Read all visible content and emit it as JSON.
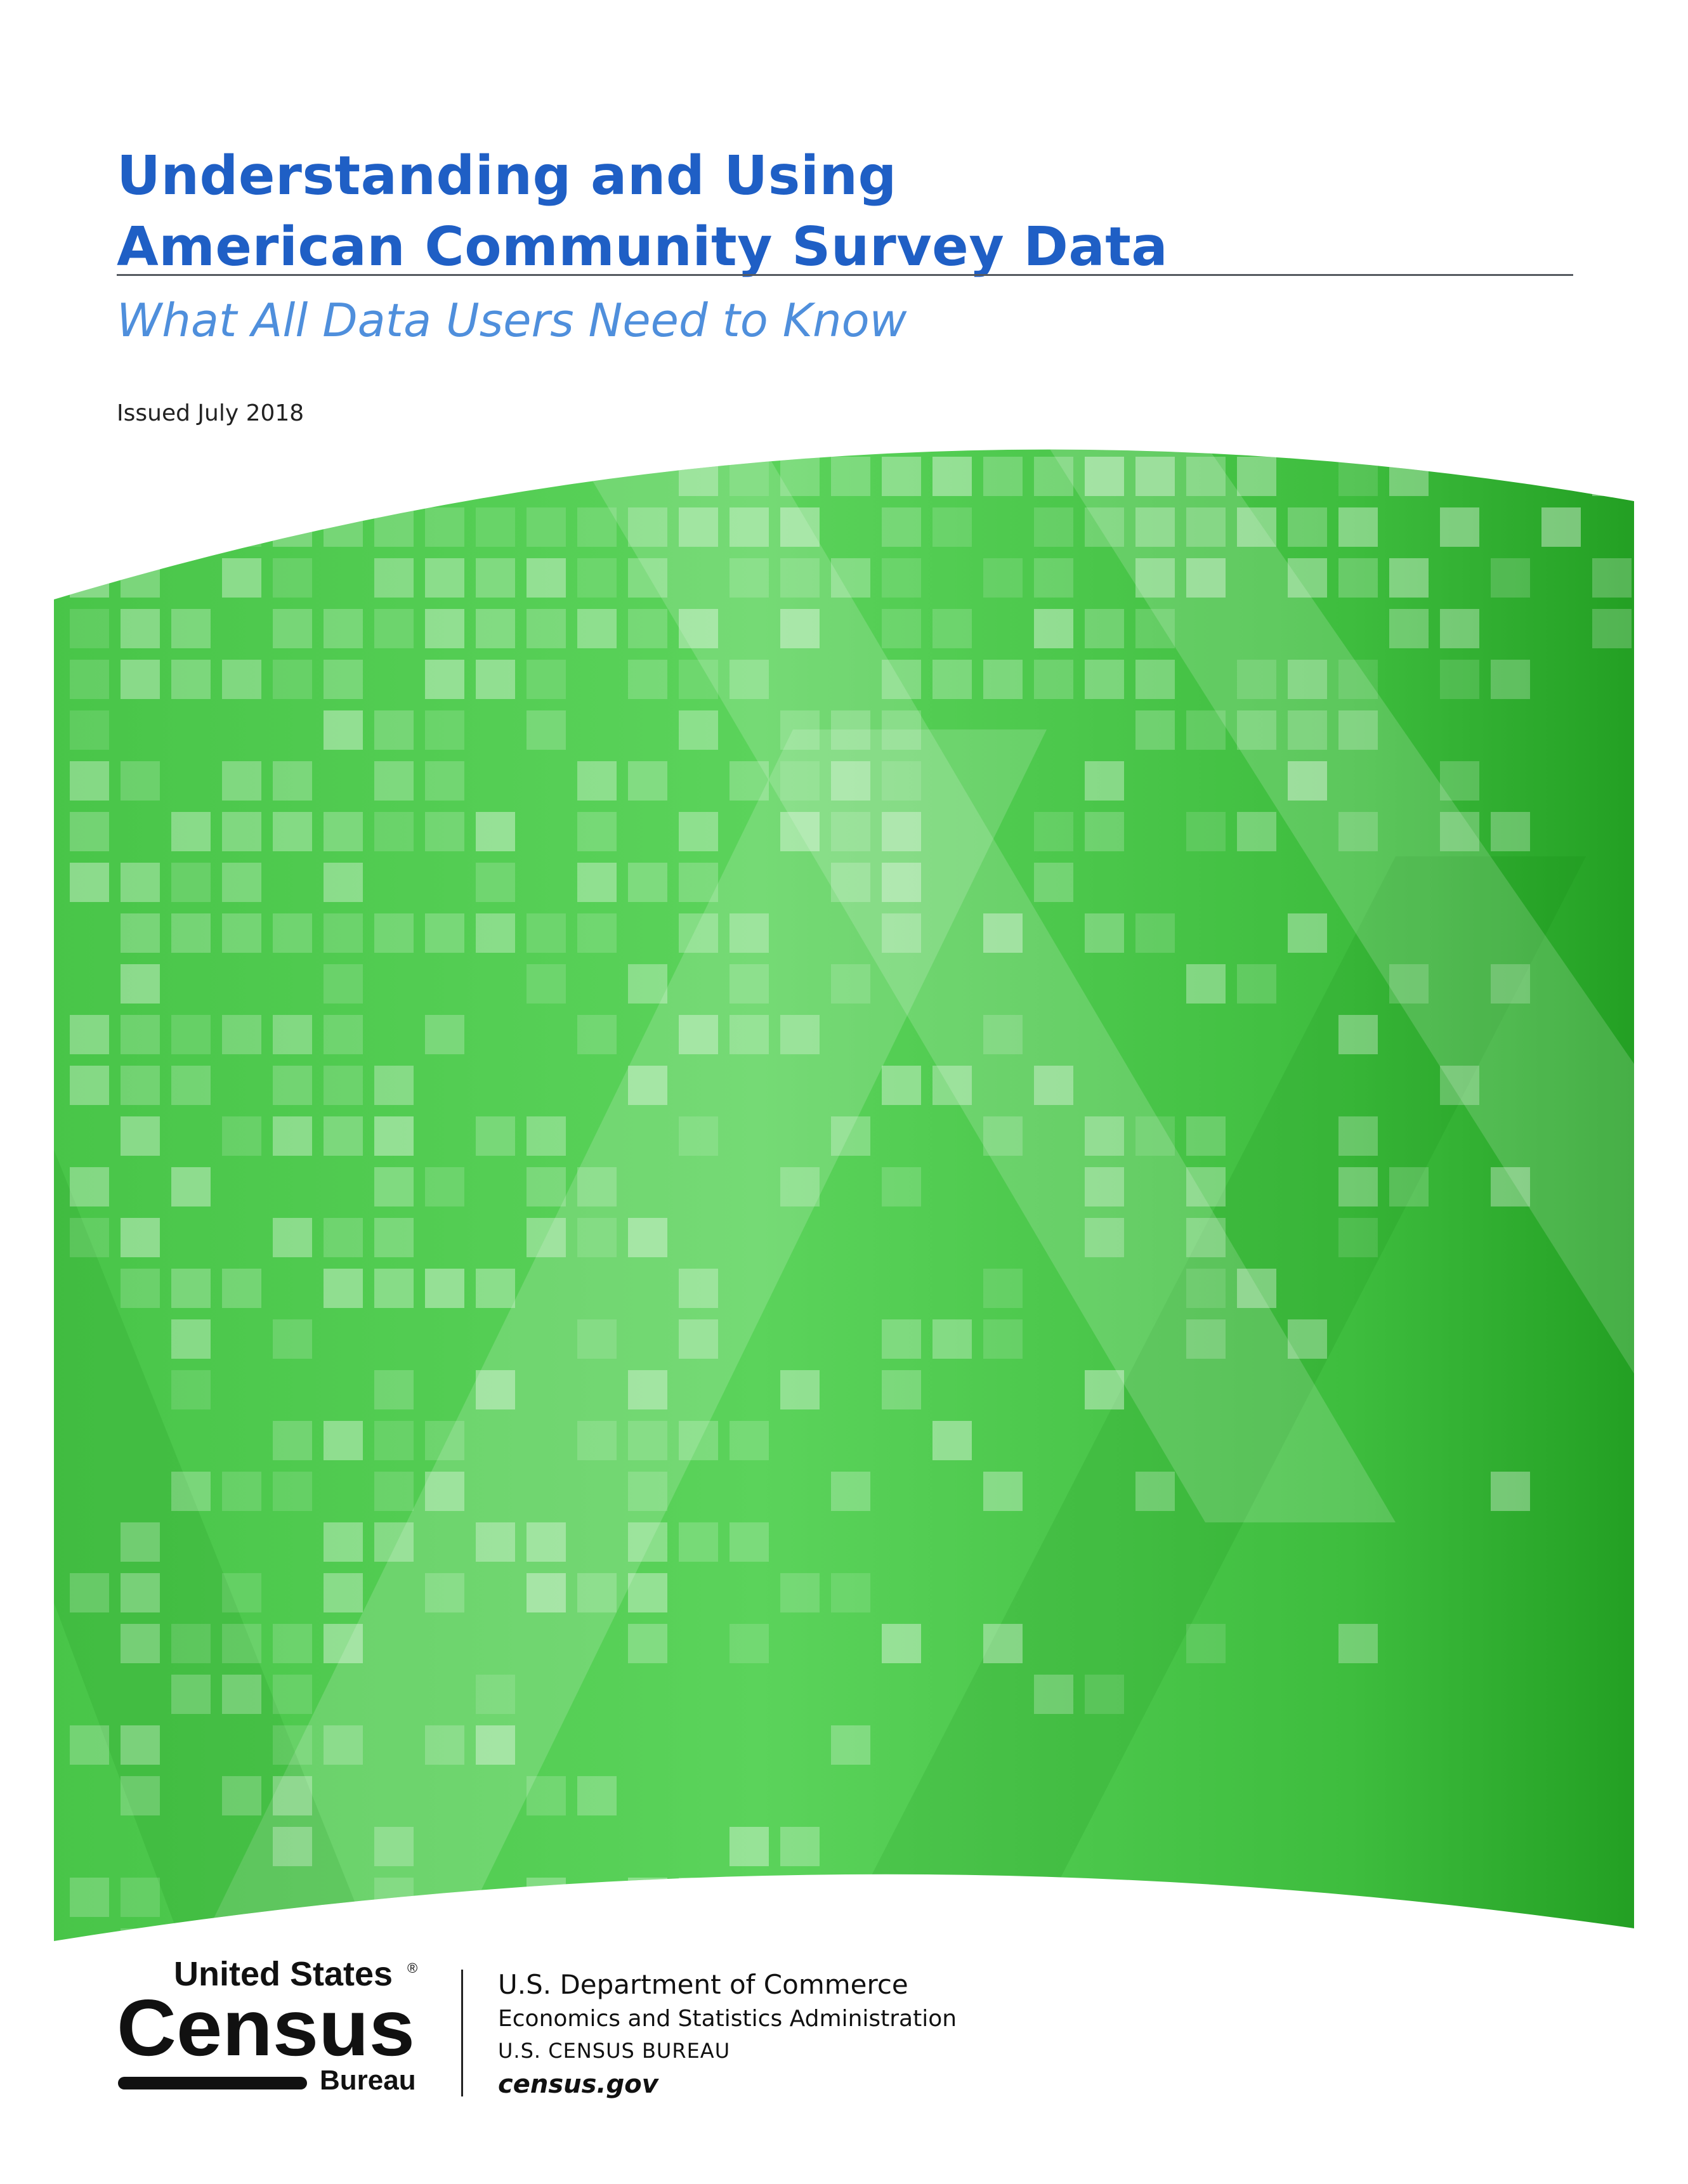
{
  "cover": {
    "title_line1": "Understanding and Using",
    "title_line2": "American Community Survey Data",
    "subtitle": "What All Data Users Need to Know",
    "issued": "Issued July 2018"
  },
  "logo": {
    "line1": "United States",
    "registered_mark": "®",
    "line2": "Census",
    "line3": "Bureau"
  },
  "agency": {
    "department": "U.S. Department of Commerce",
    "administration": "Economics and Statistics Administration",
    "bureau": "U.S. CENSUS BUREAU",
    "website": "census.gov"
  },
  "colors": {
    "title_blue": "#1f5fc5",
    "subtitle_blue": "#4f8fdc",
    "green_light": "#5bd15b",
    "green_dark": "#1e9a1e",
    "logo_black": "#111111"
  }
}
